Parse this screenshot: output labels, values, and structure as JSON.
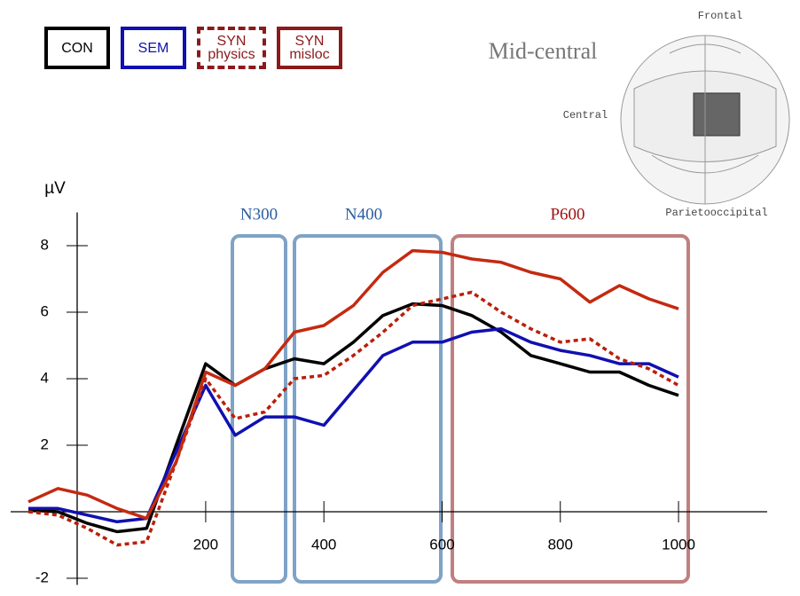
{
  "chart_data": {
    "type": "line",
    "y_label": "µV",
    "x": [
      -100,
      -50,
      0,
      50,
      100,
      150,
      200,
      250,
      300,
      350,
      400,
      450,
      500,
      550,
      600,
      650,
      700,
      750,
      800,
      850,
      900,
      950,
      1000
    ],
    "series": [
      {
        "name": "CON",
        "color": "#000000",
        "dash": false,
        "values": [
          0.05,
          0,
          -0.35,
          -0.6,
          -0.5,
          2.0,
          4.45,
          3.8,
          4.3,
          4.6,
          4.45,
          5.1,
          5.9,
          6.25,
          6.2,
          5.9,
          5.4,
          4.7,
          4.45,
          4.2,
          4.2,
          3.8,
          3.5
        ]
      },
      {
        "name": "SEM",
        "color": "#1010b0",
        "dash": false,
        "values": [
          0.1,
          0.1,
          -0.1,
          -0.3,
          -0.2,
          1.8,
          3.8,
          2.3,
          2.85,
          2.85,
          2.6,
          3.65,
          4.7,
          5.1,
          5.1,
          5.4,
          5.5,
          5.1,
          4.85,
          4.7,
          4.45,
          4.45,
          4.05
        ]
      },
      {
        "name": "SYN physics",
        "color": "#b8200a",
        "dash": true,
        "values": [
          0,
          -0.1,
          -0.5,
          -1.0,
          -0.9,
          1.5,
          4.0,
          2.8,
          3.0,
          4.0,
          4.1,
          4.7,
          5.4,
          6.2,
          6.4,
          6.6,
          6.0,
          5.5,
          5.1,
          5.2,
          4.6,
          4.3,
          3.8
        ]
      },
      {
        "name": "SYN misloc",
        "color": "#c42a10",
        "dash": false,
        "values": [
          0.3,
          0.7,
          0.5,
          0.1,
          -0.2,
          1.5,
          4.2,
          3.8,
          4.3,
          5.4,
          5.6,
          6.2,
          7.2,
          7.85,
          7.8,
          7.6,
          7.5,
          7.2,
          7.0,
          6.3,
          6.8,
          6.4,
          6.1
        ]
      }
    ],
    "xlim": [
      -130,
      1150
    ],
    "ylim": [
      -2.2,
      9
    ],
    "xticks": [
      200,
      400,
      600,
      800,
      1000
    ],
    "yticks": [
      -2,
      2,
      4,
      6,
      8
    ],
    "windows": [
      "N300",
      "N400",
      "P600"
    ],
    "region": {
      "title": "Mid-central",
      "labels": [
        "Frontal",
        "Central",
        "Parietooccipital"
      ]
    }
  }
}
